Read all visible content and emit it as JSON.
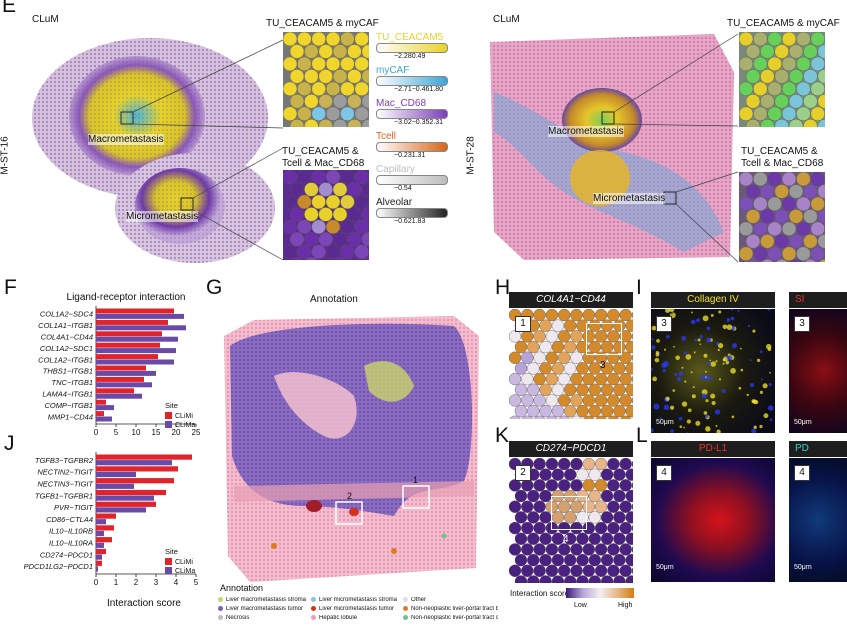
{
  "panels": {
    "E": "E",
    "F": "F",
    "G": "G",
    "H": "H",
    "I": "I",
    "J": "J",
    "K": "K",
    "L": "L"
  },
  "panel_e": {
    "left": {
      "group": "CLuM",
      "sample": "M-ST-16",
      "macro_label": "Macrometastasis",
      "micro_label": "Micrometastasis",
      "inset_top_title": "TU_CEACAM5 & myCAF",
      "inset_bottom_title_l1": "TU_CEACAM5 &",
      "inset_bottom_title_l2": "Tcell & Mac_CD68"
    },
    "right": {
      "group": "CLuM",
      "sample": "M-ST-28",
      "macro_label": "Macrometastasis",
      "micro_label": "Micrometastasis",
      "inset_top_title": "TU_CEACAM5 & myCAF",
      "inset_bottom_title_l1": "TU_CEACAM5 &",
      "inset_bottom_title_l2": "Tcell & Mac_CD68"
    },
    "legend": [
      {
        "name": "TU_CEACAM5",
        "color": "#e8d22a",
        "range": "−2.280.49"
      },
      {
        "name": "myCAF",
        "color": "#3aa6d8",
        "range": "−2.71−0.461.80"
      },
      {
        "name": "Mac_CD68",
        "color": "#7b3fb5",
        "range": "−3.02−0.352.31"
      },
      {
        "name": "Tcell",
        "color": "#d9661a",
        "range": "−0.231.31"
      },
      {
        "name": "Capillary",
        "color": "#bdbdbd",
        "range": "−0.54"
      },
      {
        "name": "Alveolar",
        "color": "#222222",
        "range": "−0.621.83"
      }
    ]
  },
  "panel_f": {
    "title": "Ligand-receptor interaction",
    "legend_title": "Site",
    "legend": [
      {
        "name": "CLiMi",
        "color": "#e0242a"
      },
      {
        "name": "CLiMa",
        "color": "#6a4aa8"
      }
    ]
  },
  "panel_j": {
    "legend_title": "Site",
    "legend": [
      {
        "name": "CLiMi",
        "color": "#e0242a"
      },
      {
        "name": "CLiMa",
        "color": "#6a4aa8"
      }
    ],
    "xlabel": "Interaction score"
  },
  "chart_data": [
    {
      "type": "bar",
      "title": "Ligand-receptor interaction",
      "categories": [
        "COL1A2−SDC4",
        "COL1A1−ITGB1",
        "COL4A1−CD44",
        "COL1A2−SDC1",
        "COL1A2−ITGB1",
        "THBS1−ITGB1",
        "TNC−ITGB1",
        "LAMA4−ITGB1",
        "COMP−ITGB1",
        "MMP1−CD44"
      ],
      "series": [
        {
          "name": "CLiMi",
          "values": [
            3.9,
            3.6,
            3.3,
            3.2,
            3.1,
            2.5,
            2.4,
            1.9,
            0.5,
            0.4
          ]
        },
        {
          "name": "CLiMa",
          "values": [
            4.4,
            4.5,
            4.1,
            4.0,
            3.9,
            3.0,
            2.8,
            2.3,
            0.9,
            0.8
          ]
        }
      ],
      "xlim": [
        0,
        5
      ],
      "xticks": [
        0,
        5,
        10,
        15,
        20,
        25
      ],
      "xlabel": ""
    },
    {
      "type": "bar",
      "title": "",
      "categories": [
        "TGFB3−TGFBR2",
        "NECTIN2−TIGIT",
        "NECTIN3−TIGIT",
        "TGFB1−TGFBR1",
        "PVR−TIGIT",
        "CD86−CTLA4",
        "IL10−IL10RB",
        "IL10−IL10RA",
        "CD274−PDCD1",
        "PDCD1LG2−PDCD1"
      ],
      "series": [
        {
          "name": "CLiMi",
          "values": [
            4.8,
            4.1,
            3.9,
            3.5,
            3.0,
            1.0,
            0.9,
            0.8,
            0.5,
            0.3
          ]
        },
        {
          "name": "CLiMa",
          "values": [
            3.8,
            2.0,
            1.9,
            2.9,
            2.5,
            0.5,
            0.4,
            0.4,
            0.3,
            0.1
          ]
        }
      ],
      "xlim": [
        0,
        5
      ],
      "xticks": [
        0,
        1,
        2,
        3,
        4,
        5
      ],
      "xlabel": "Interaction score"
    }
  ],
  "panel_g": {
    "title": "Annotation",
    "box_labels": [
      "1",
      "2"
    ],
    "legend_title": "Annotation",
    "legend": [
      {
        "name": "Liver macrometastasis stroma",
        "color": "#c9d46a"
      },
      {
        "name": "Liver macrometastasis tumor",
        "color": "#7a5fb0"
      },
      {
        "name": "Necrosis",
        "color": "#bfbfbf"
      },
      {
        "name": "Liver micrometastasis stroma",
        "color": "#8ec4d8"
      },
      {
        "name": "Liver micrometastasis tumor",
        "color": "#d6311f"
      },
      {
        "name": "Hepatic lobule",
        "color": "#eea1b4"
      },
      {
        "name": "Other",
        "color": "#e0e0e0"
      },
      {
        "name": "Non-neoplastic liver-portal tract bile ducts",
        "color": "#e07a22"
      },
      {
        "name": "Non-neoplastic liver-portal tract stroma",
        "color": "#6fbf97"
      }
    ]
  },
  "panel_h": {
    "title": "COL4A1−CD44",
    "inset_num": "1",
    "box_label": "3"
  },
  "panel_k": {
    "title": "CD274−PDCD1",
    "inset_num": "2",
    "box_label": "4"
  },
  "score_legend": {
    "title": "Interaction score",
    "low": "Low",
    "high": "High"
  },
  "panel_i": {
    "img1_title": "Collagen IV",
    "img1_title_color": "#f2e31a",
    "img1_num": "3",
    "img1_scale": "50μm",
    "img2_title": "SI",
    "img2_title_color": "#e8342a",
    "img2_num": "3",
    "img2_scale": "50μm"
  },
  "panel_l": {
    "img1_title": "PD-L1",
    "img1_title_color": "#e8342a",
    "img1_num": "4",
    "img1_scale": "50μm",
    "img2_title": "PD",
    "img2_title_color": "#2ed0c8",
    "img2_num": "4",
    "img2_scale": "50μm"
  }
}
